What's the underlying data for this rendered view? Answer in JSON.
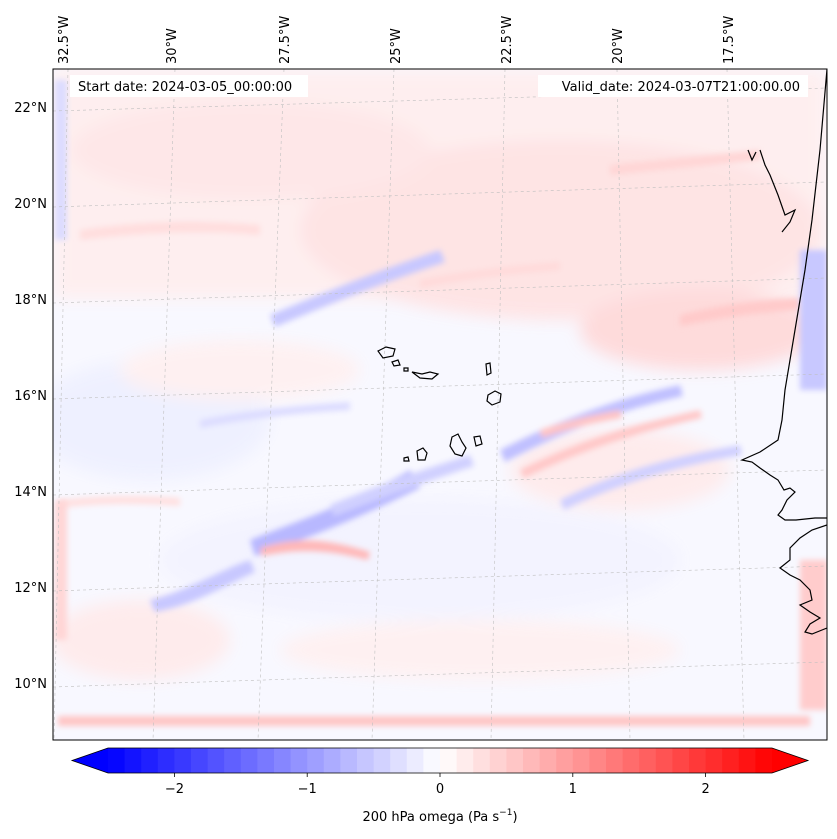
{
  "map": {
    "start_date": "Start date: 2024-03-05_00:00:00",
    "valid_date": "Valid_date: 2024-03-07T21:00:00.00",
    "lon_labels": [
      "32.5°W",
      "30°W",
      "27.5°W",
      "25°W",
      "22.5°W",
      "20°W",
      "17.5°W"
    ],
    "lat_labels": [
      "22°N",
      "20°N",
      "18°N",
      "16°N",
      "14°N",
      "12°N",
      "10°N"
    ],
    "gridlines": "dashed-grey",
    "field": "200 hPa vertical velocity (omega)",
    "region": "Cabo Verde / West African coast"
  },
  "colorbar": {
    "label": "200 hPa omega (Pa s",
    "unit_superscript": "−1",
    "label_close": ")",
    "ticks": [
      "−2",
      "−1",
      "0",
      "1",
      "2"
    ],
    "tick_values": [
      -2,
      -1,
      0,
      1,
      2
    ],
    "range": [
      -2.5,
      2.5
    ],
    "cmap": "bwr",
    "extend": "both",
    "negative_color": "#0000ff",
    "zero_color": "#ffffff",
    "positive_color": "#ff0000"
  }
}
